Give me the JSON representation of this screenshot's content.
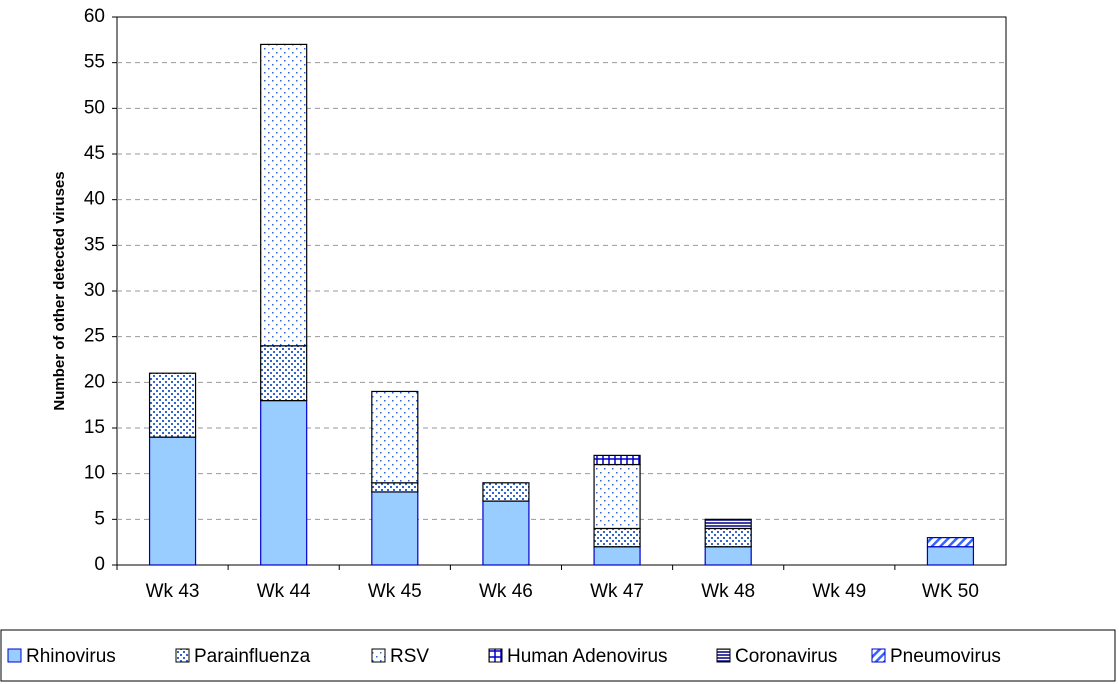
{
  "chart_data": {
    "type": "stacked-bar",
    "y_label": "Number of other detected viruses",
    "categories": [
      "Wk 43",
      "Wk 44",
      "Wk 45",
      "Wk 46",
      "Wk 47",
      "Wk 48",
      "Wk 49",
      "WK 50"
    ],
    "series": [
      {
        "name": "Rhinovirus",
        "color": "#99ccff",
        "edge": "#0000cc",
        "pattern": "solid",
        "values": [
          14,
          18,
          8,
          7,
          2,
          2,
          0,
          2
        ]
      },
      {
        "name": "Parainfluenza",
        "color": "#3366cc",
        "edge": "#000000",
        "pattern": "dense-dots",
        "values": [
          7,
          6,
          1,
          2,
          2,
          2,
          0,
          0
        ]
      },
      {
        "name": "RSV",
        "color": "#3366cc",
        "edge": "#000000",
        "pattern": "sparse-dots",
        "values": [
          0,
          33,
          10,
          0,
          7,
          0,
          0,
          0
        ]
      },
      {
        "name": "Human Adenovirus",
        "color": "#0000cc",
        "edge": "#000000",
        "pattern": "cross",
        "values": [
          0,
          0,
          0,
          0,
          1,
          0,
          0,
          0
        ]
      },
      {
        "name": "Coronavirus",
        "color": "#000080",
        "edge": "#000000",
        "pattern": "horizontal",
        "values": [
          0,
          0,
          0,
          0,
          0,
          1,
          0,
          0
        ]
      },
      {
        "name": "Pneumovirus",
        "color": "#3366ff",
        "edge": "#0000cc",
        "pattern": "diagonal",
        "values": [
          0,
          0,
          0,
          0,
          0,
          0,
          0,
          1
        ]
      }
    ],
    "ylim": [
      0,
      60
    ],
    "yticks": [
      0,
      5,
      10,
      15,
      20,
      25,
      30,
      35,
      40,
      45,
      50,
      55,
      60
    ],
    "grid": true,
    "legend": "bottom"
  }
}
